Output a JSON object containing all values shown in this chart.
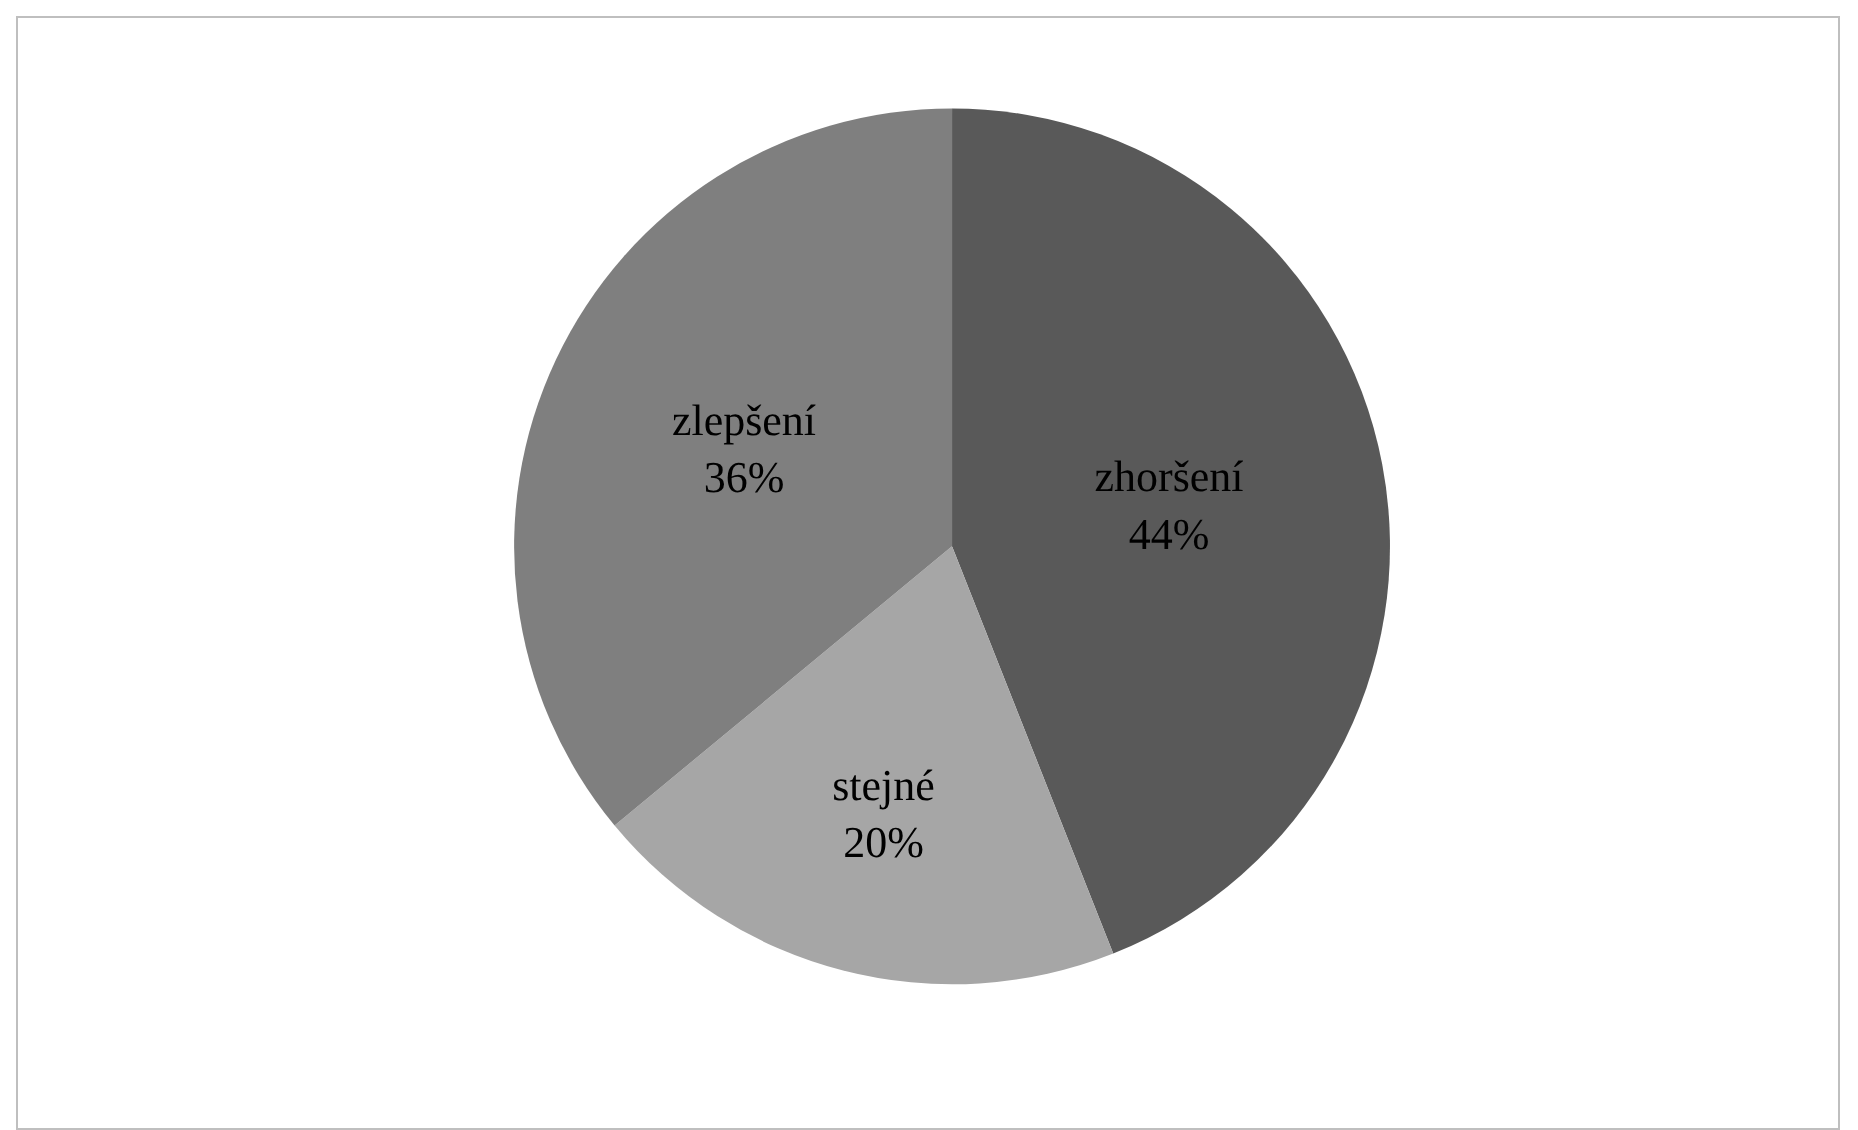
{
  "chart_data": {
    "type": "pie",
    "categories": [
      "zhoršení",
      "stejné",
      "zlepšení"
    ],
    "values": [
      44,
      20,
      36
    ],
    "value_labels": [
      "44%",
      "20%",
      "36%"
    ],
    "colors": [
      "#595959",
      "#a6a6a6",
      "#7f7f7f"
    ],
    "legend": false
  }
}
